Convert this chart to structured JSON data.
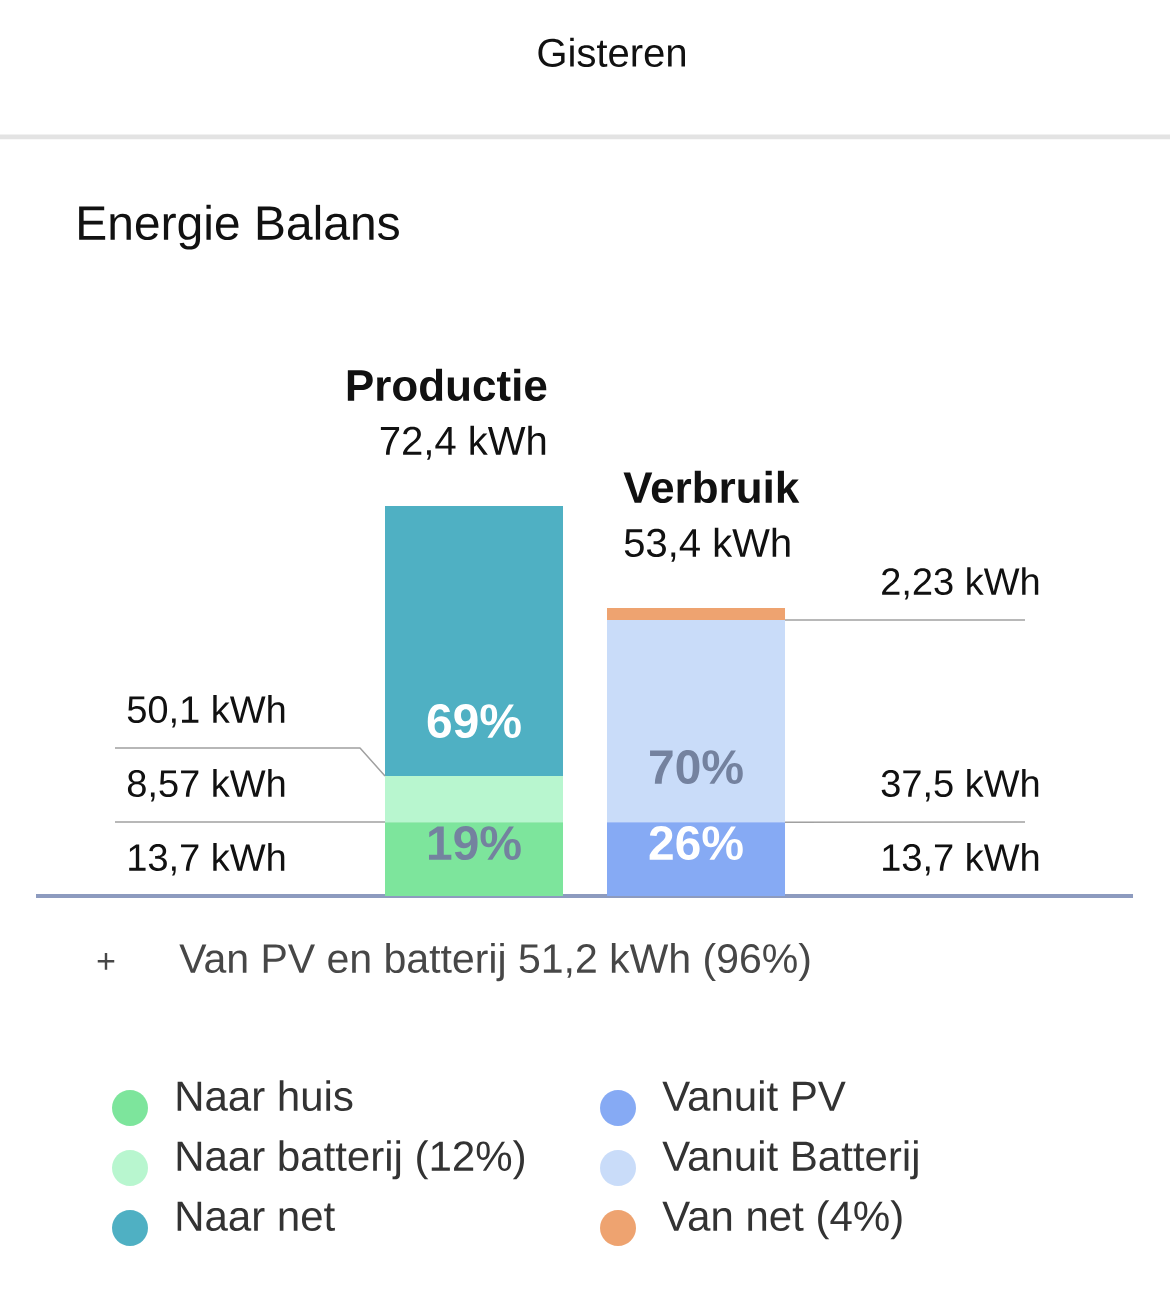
{
  "chart_data": {
    "type": "bar",
    "title": "Energie Balans",
    "categories": [
      "Productie",
      "Verbruik"
    ],
    "stacked": true,
    "series": [
      {
        "name": "Naar huis",
        "color": "#7de59c",
        "values": [
          13.7,
          null
        ],
        "value_labels": [
          "13,7 kWh",
          null
        ]
      },
      {
        "name": "Naar batterij (12%)",
        "color": "#b8f6cf",
        "values": [
          8.57,
          null
        ],
        "value_labels": [
          "8,57 kWh",
          null
        ]
      },
      {
        "name": "Naar net",
        "color": "#4fb0c3",
        "values": [
          50.1,
          null
        ],
        "value_labels": [
          "50,1 kWh",
          null
        ]
      },
      {
        "name": "Vanuit PV",
        "color": "#86aaf4",
        "values": [
          null,
          13.7
        ],
        "value_labels": [
          null,
          "13,7 kWh"
        ]
      },
      {
        "name": "Vanuit Batterij",
        "color": "#c9dcf9",
        "values": [
          null,
          37.5
        ],
        "value_labels": [
          null,
          "37,5 kWh"
        ]
      },
      {
        "name": "Van net (4%)",
        "color": "#eea370",
        "values": [
          null,
          2.23
        ],
        "value_labels": [
          null,
          "2,23 kWh"
        ]
      }
    ],
    "totals": [
      "72,4 kWh",
      "53,4 kWh"
    ],
    "legend": "bottom",
    "annotations": [
      "Gisteren",
      "69%",
      "19%",
      "70%",
      "26%",
      "+",
      "Van PV en batterij 51,2 kWh (96%)"
    ]
  }
}
